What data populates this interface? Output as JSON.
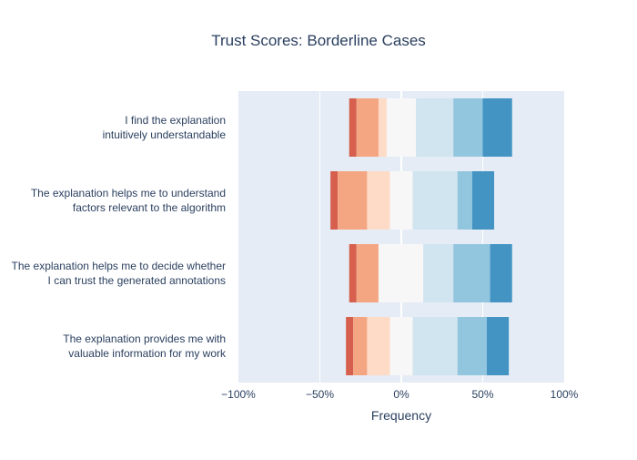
{
  "chart_data": {
    "type": "bar",
    "orientation": "horizontal",
    "stacked": "diverging",
    "title": "Trust Scores: Borderline Cases",
    "xlabel": "Frequency",
    "ylabel": "",
    "xlim": [
      -100,
      100
    ],
    "x_ticks": [
      {
        "value": -100,
        "label": "−100%"
      },
      {
        "value": -50,
        "label": "−50%"
      },
      {
        "value": 0,
        "label": "0%"
      },
      {
        "value": 50,
        "label": "50%"
      },
      {
        "value": 100,
        "label": "100%"
      }
    ],
    "grid": true,
    "legend": "none",
    "categories": [
      {
        "lines": [
          "I find the explanation",
          "intuitively understandable"
        ]
      },
      {
        "lines": [
          "The explanation helps me to understand",
          "factors relevant to the algorithm"
        ]
      },
      {
        "lines": [
          "The explanation helps me to decide whether",
          "I can trust the generated annotations"
        ]
      },
      {
        "lines": [
          "The explanation provides me with",
          "valuable information for my work"
        ]
      }
    ],
    "segments_order": [
      "level1",
      "level2",
      "level3",
      "level4",
      "level5",
      "level6",
      "level7",
      "level8"
    ],
    "colors": [
      "#d6604d",
      "#f4a582",
      "#fddbc7",
      "#f7f7f7",
      "#f7f7f7",
      "#d1e5f0",
      "#92c5de",
      "#4393c3"
    ],
    "rows": [
      [
        {
          "from": -32,
          "to": -27.5
        },
        {
          "from": -27.5,
          "to": -14
        },
        {
          "from": -14,
          "to": -9
        },
        {
          "from": -9,
          "to": 0
        },
        {
          "from": 0,
          "to": 9
        },
        {
          "from": 9,
          "to": 32
        },
        {
          "from": 32,
          "to": 50
        },
        {
          "from": 50,
          "to": 68
        }
      ],
      [
        {
          "from": -43.5,
          "to": -39
        },
        {
          "from": -39,
          "to": -21
        },
        {
          "from": -21,
          "to": -7
        },
        {
          "from": -7,
          "to": 0
        },
        {
          "from": 0,
          "to": 7
        },
        {
          "from": 7,
          "to": 34.5
        },
        {
          "from": 34.5,
          "to": 43.5
        },
        {
          "from": 43.5,
          "to": 57
        }
      ],
      [
        {
          "from": -32,
          "to": -27.5
        },
        {
          "from": -27.5,
          "to": -14
        },
        {
          "from": -14,
          "to": -14
        },
        {
          "from": -14,
          "to": 0
        },
        {
          "from": 0,
          "to": 13.5
        },
        {
          "from": 13.5,
          "to": 32
        },
        {
          "from": 32,
          "to": 54.5
        },
        {
          "from": 54.5,
          "to": 68
        }
      ],
      [
        {
          "from": -34,
          "to": -29.5
        },
        {
          "from": -29.5,
          "to": -21
        },
        {
          "from": -21,
          "to": -7
        },
        {
          "from": -7,
          "to": 0
        },
        {
          "from": 0,
          "to": 7
        },
        {
          "from": 7,
          "to": 34.5
        },
        {
          "from": 34.5,
          "to": 52.5
        },
        {
          "from": 52.5,
          "to": 66
        }
      ]
    ]
  }
}
